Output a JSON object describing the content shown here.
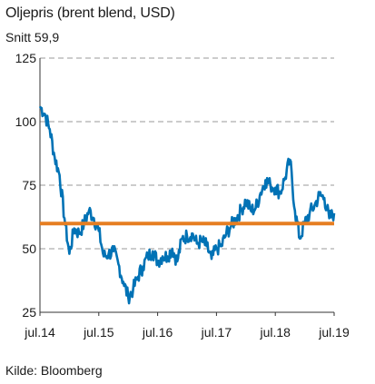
{
  "header": {
    "title": "Oljepris (brent blend, USD)",
    "subtitle": "Snitt 59,9"
  },
  "footer": {
    "source": "Kilde: Bloomberg"
  },
  "colors": {
    "series": "#0072b5",
    "average": "#e67e22",
    "grid": "#9a9a9a",
    "axis": "#333333"
  },
  "chart_data": {
    "type": "line",
    "title": "Oljepris (brent blend, USD)",
    "subtitle": "Snitt 59,9",
    "xlabel": "",
    "ylabel": "",
    "ylim": [
      25,
      125
    ],
    "y_ticks": [
      25,
      50,
      75,
      100,
      125
    ],
    "y_tick_labels": [
      "25",
      "50",
      "75",
      "100",
      "125"
    ],
    "x_ticks": [
      "2014-07",
      "2015-07",
      "2016-07",
      "2017-07",
      "2018-07",
      "2019-07"
    ],
    "x_tick_labels": [
      "jul.14",
      "jul.15",
      "jul.16",
      "jul.17",
      "jul.18",
      "jul.19"
    ],
    "grid": "horizontal-dashed",
    "average": {
      "label": "Snitt 59,9",
      "value": 59.9
    },
    "series": [
      {
        "x": [
          "2014-07",
          "2014-08",
          "2014-09",
          "2014-10",
          "2014-11",
          "2014-12",
          "2015-01",
          "2015-02",
          "2015-03",
          "2015-04",
          "2015-05",
          "2015-06",
          "2015-07",
          "2015-08",
          "2015-09",
          "2015-10",
          "2015-11",
          "2015-12",
          "2016-01",
          "2016-02",
          "2016-03",
          "2016-04",
          "2016-05",
          "2016-06",
          "2016-07",
          "2016-08",
          "2016-09",
          "2016-10",
          "2016-11",
          "2016-12",
          "2017-01",
          "2017-02",
          "2017-03",
          "2017-04",
          "2017-05",
          "2017-06",
          "2017-07",
          "2017-08",
          "2017-09",
          "2017-10",
          "2017-11",
          "2017-12",
          "2018-01",
          "2018-02",
          "2018-03",
          "2018-04",
          "2018-05",
          "2018-06",
          "2018-07",
          "2018-08",
          "2018-09",
          "2018-10",
          "2018-11",
          "2018-12",
          "2019-01",
          "2019-02",
          "2019-03",
          "2019-04",
          "2019-05",
          "2019-06",
          "2019-07"
        ],
        "values": [
          106,
          103,
          97,
          86,
          79,
          62,
          48,
          58,
          56,
          60,
          65,
          62,
          57,
          47,
          48,
          49,
          44,
          37,
          31,
          34,
          39,
          43,
          47,
          49,
          45,
          47,
          47,
          50,
          45,
          54,
          55,
          56,
          52,
          53,
          51,
          46,
          50,
          51,
          56,
          59,
          62,
          65,
          69,
          65,
          66,
          72,
          77,
          75,
          74,
          72,
          78,
          85,
          65,
          54,
          60,
          64,
          67,
          71,
          70,
          62,
          64
        ]
      }
    ]
  }
}
